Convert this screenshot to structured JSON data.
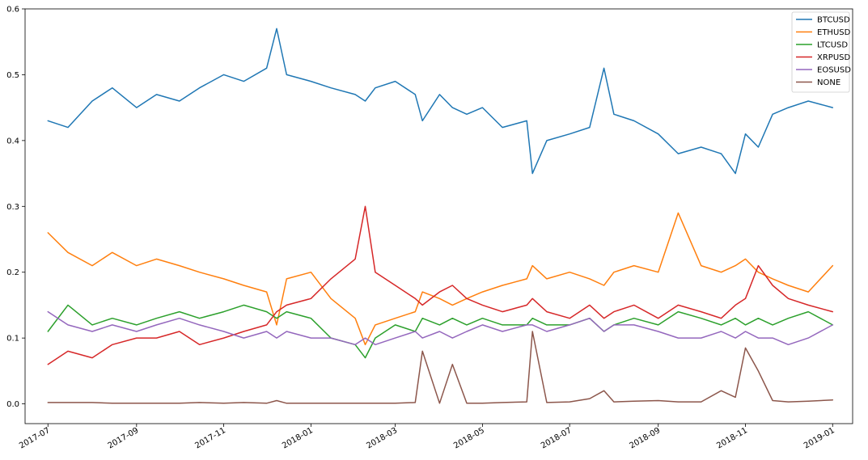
{
  "chart_data": {
    "type": "line",
    "title": "",
    "xlabel": "",
    "ylabel": "",
    "x_ticks": [
      "2017-07",
      "2017-09",
      "2017-11",
      "2018-01",
      "2018-03",
      "2018-05",
      "2018-07",
      "2018-09",
      "2018-11",
      "2019-01"
    ],
    "y_ticks": [
      0.0,
      0.1,
      0.2,
      0.3,
      0.4,
      0.5,
      0.6
    ],
    "y_tick_labels": [
      "0.0",
      "0.1",
      "0.2",
      "0.3",
      "0.4",
      "0.5",
      "0.6"
    ],
    "xlim": [
      "2017-06-15",
      "2019-01-15"
    ],
    "ylim": [
      -0.03,
      0.6
    ],
    "grid": false,
    "legend_position": "top-right",
    "x": [
      "2017-07-01",
      "2017-07-15",
      "2017-08-01",
      "2017-08-15",
      "2017-09-01",
      "2017-09-15",
      "2017-10-01",
      "2017-10-15",
      "2017-11-01",
      "2017-11-15",
      "2017-12-01",
      "2017-12-08",
      "2017-12-15",
      "2018-01-01",
      "2018-01-15",
      "2018-02-01",
      "2018-02-08",
      "2018-02-15",
      "2018-03-01",
      "2018-03-15",
      "2018-03-20",
      "2018-04-01",
      "2018-04-10",
      "2018-04-20",
      "2018-05-01",
      "2018-05-15",
      "2018-06-01",
      "2018-06-05",
      "2018-06-15",
      "2018-07-01",
      "2018-07-15",
      "2018-07-25",
      "2018-08-01",
      "2018-08-15",
      "2018-09-01",
      "2018-09-15",
      "2018-10-01",
      "2018-10-15",
      "2018-10-25",
      "2018-11-01",
      "2018-11-10",
      "2018-11-20",
      "2018-12-01",
      "2018-12-15",
      "2019-01-01"
    ],
    "series": [
      {
        "name": "BTCUSD",
        "color": "#1f77b4",
        "values": [
          0.43,
          0.42,
          0.46,
          0.48,
          0.45,
          0.47,
          0.46,
          0.48,
          0.5,
          0.49,
          0.51,
          0.57,
          0.5,
          0.49,
          0.48,
          0.47,
          0.46,
          0.48,
          0.49,
          0.47,
          0.43,
          0.47,
          0.45,
          0.44,
          0.45,
          0.42,
          0.43,
          0.35,
          0.4,
          0.41,
          0.42,
          0.51,
          0.44,
          0.43,
          0.41,
          0.38,
          0.39,
          0.38,
          0.35,
          0.41,
          0.39,
          0.44,
          0.45,
          0.46,
          0.45
        ]
      },
      {
        "name": "ETHUSD",
        "color": "#ff7f0e",
        "values": [
          0.26,
          0.23,
          0.21,
          0.23,
          0.21,
          0.22,
          0.21,
          0.2,
          0.19,
          0.18,
          0.17,
          0.12,
          0.19,
          0.2,
          0.16,
          0.13,
          0.09,
          0.12,
          0.13,
          0.14,
          0.17,
          0.16,
          0.15,
          0.16,
          0.17,
          0.18,
          0.19,
          0.21,
          0.19,
          0.2,
          0.19,
          0.18,
          0.2,
          0.21,
          0.2,
          0.29,
          0.21,
          0.2,
          0.21,
          0.22,
          0.2,
          0.19,
          0.18,
          0.17,
          0.21
        ]
      },
      {
        "name": "LTCUSD",
        "color": "#2ca02c",
        "values": [
          0.11,
          0.15,
          0.12,
          0.13,
          0.12,
          0.13,
          0.14,
          0.13,
          0.14,
          0.15,
          0.14,
          0.13,
          0.14,
          0.13,
          0.1,
          0.09,
          0.07,
          0.1,
          0.12,
          0.11,
          0.13,
          0.12,
          0.13,
          0.12,
          0.13,
          0.12,
          0.12,
          0.13,
          0.12,
          0.12,
          0.13,
          0.11,
          0.12,
          0.13,
          0.12,
          0.14,
          0.13,
          0.12,
          0.13,
          0.12,
          0.13,
          0.12,
          0.13,
          0.14,
          0.12
        ]
      },
      {
        "name": "XRPUSD",
        "color": "#d62728",
        "values": [
          0.06,
          0.08,
          0.07,
          0.09,
          0.1,
          0.1,
          0.11,
          0.09,
          0.1,
          0.11,
          0.12,
          0.14,
          0.15,
          0.16,
          0.19,
          0.22,
          0.3,
          0.2,
          0.18,
          0.16,
          0.15,
          0.17,
          0.18,
          0.16,
          0.15,
          0.14,
          0.15,
          0.16,
          0.14,
          0.13,
          0.15,
          0.13,
          0.14,
          0.15,
          0.13,
          0.15,
          0.14,
          0.13,
          0.15,
          0.16,
          0.21,
          0.18,
          0.16,
          0.15,
          0.14
        ]
      },
      {
        "name": "EOSUSD",
        "color": "#9467bd",
        "values": [
          0.14,
          0.12,
          0.11,
          0.12,
          0.11,
          0.12,
          0.13,
          0.12,
          0.11,
          0.1,
          0.11,
          0.1,
          0.11,
          0.1,
          0.1,
          0.09,
          0.1,
          0.09,
          0.1,
          0.11,
          0.1,
          0.11,
          0.1,
          0.11,
          0.12,
          0.11,
          0.12,
          0.12,
          0.11,
          0.12,
          0.13,
          0.11,
          0.12,
          0.12,
          0.11,
          0.1,
          0.1,
          0.11,
          0.1,
          0.11,
          0.1,
          0.1,
          0.09,
          0.1,
          0.12
        ]
      },
      {
        "name": "NONE",
        "color": "#8c564b",
        "values": [
          0.002,
          0.002,
          0.002,
          0.001,
          0.001,
          0.001,
          0.001,
          0.002,
          0.001,
          0.002,
          0.001,
          0.005,
          0.001,
          0.001,
          0.001,
          0.001,
          0.001,
          0.001,
          0.001,
          0.002,
          0.08,
          0.001,
          0.06,
          0.001,
          0.001,
          0.002,
          0.003,
          0.11,
          0.002,
          0.003,
          0.008,
          0.02,
          0.003,
          0.004,
          0.005,
          0.003,
          0.003,
          0.02,
          0.01,
          0.085,
          0.05,
          0.005,
          0.003,
          0.004,
          0.006
        ]
      }
    ]
  }
}
